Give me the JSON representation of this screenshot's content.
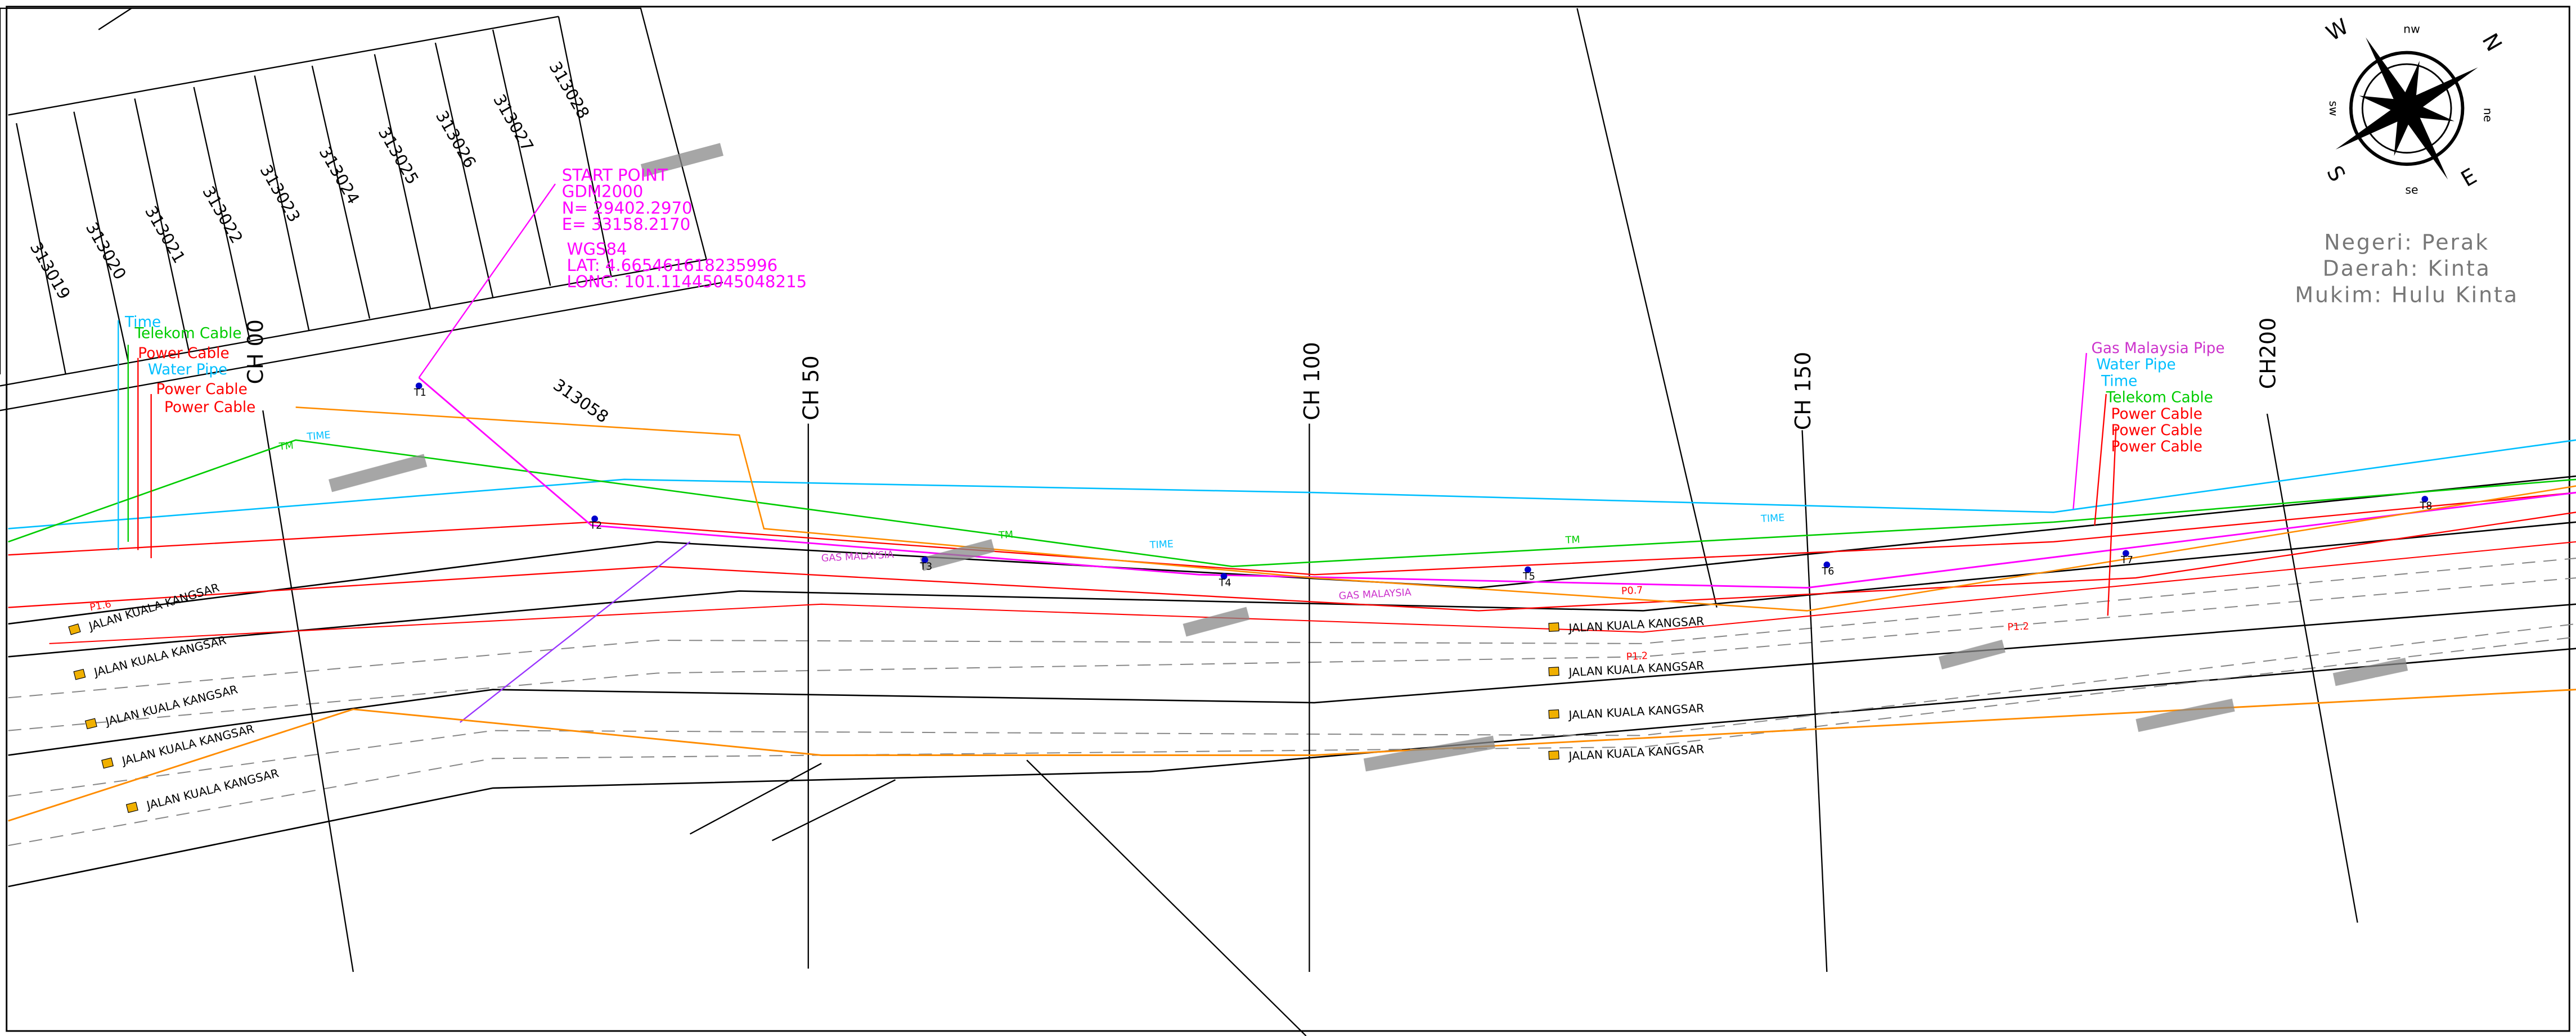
{
  "lots": [
    "313019",
    "313020",
    "313021",
    "313022",
    "313023",
    "313024",
    "313025",
    "313026",
    "313027",
    "313028",
    "313058"
  ],
  "chainages": [
    "CH 00",
    "CH 50",
    "CH 100",
    "CH 150",
    "CH200"
  ],
  "start_point": [
    "START POINT",
    "GDM2000",
    "N= 29402.2970",
    "E= 33158.2170"
  ],
  "wgs84": [
    "WGS84",
    "LAT: 4.665461618235996",
    "LONG: 101.11445045048215"
  ],
  "legend_left": [
    "Time",
    "Telekom Cable",
    "Power Cable",
    "Water Pipe",
    "Power Cable",
    "Power Cable"
  ],
  "legend_right": [
    "Gas Malaysia Pipe",
    "Water Pipe",
    "Time",
    "Telekom Cable",
    "Power Cable",
    "Power Cable",
    "Power Cable"
  ],
  "roads": [
    "JALAN KUALA KANGSAR",
    "JALAN KUALA KANGSAR",
    "JALAN KUALA KANGSAR",
    "JALAN KUALA KANGSAR",
    "JALAN KUALA KANGSAR",
    "JALAN KUALA KANGSAR",
    "JALAN KUALA KANGSAR",
    "JALAN KUALA KANGSAR",
    "JALAN KUALA KANGSAR"
  ],
  "location": [
    "Negeri: Perak",
    "Daerah: Kinta",
    "Mukim: Hulu Kinta"
  ],
  "compass": {
    "n": "N",
    "s": "S",
    "e": "E",
    "w": "W",
    "nw": "nw",
    "ne": "ne",
    "se": "se",
    "sw": "sw"
  },
  "stations": [
    "T1",
    "T2",
    "T3",
    "T4",
    "T5",
    "T6",
    "T7",
    "T8"
  ],
  "utility_tags": [
    "TIME",
    "TM",
    "TIME",
    "TM",
    "TIME",
    "TM",
    "GAS MALAYSIA",
    "GAS MALAYSIA",
    "P1.6",
    "P1.2",
    "P0.7",
    "P1.2"
  ]
}
